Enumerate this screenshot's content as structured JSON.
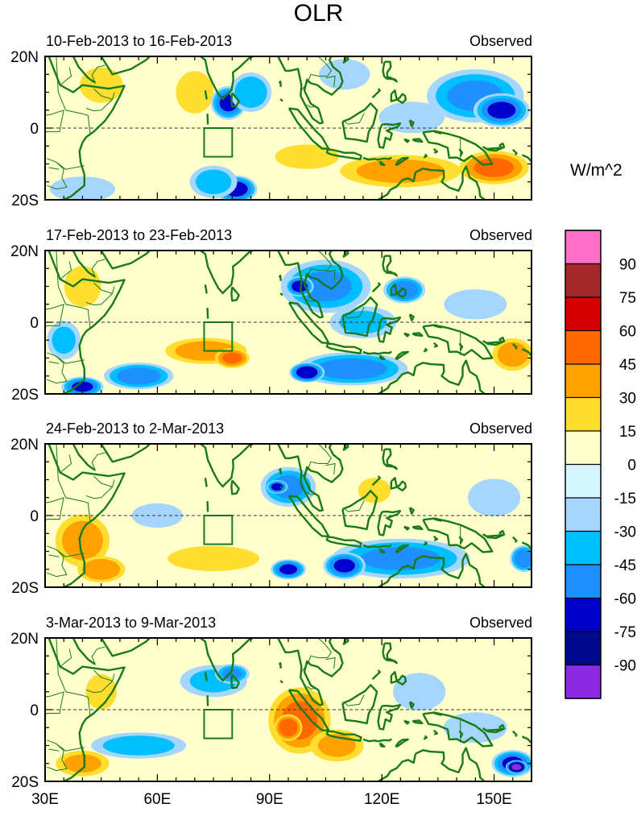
{
  "chart_data": {
    "type": "heatmap",
    "title": "OLR",
    "units": "W/m^2",
    "x_axis": {
      "ticks": [
        "30E",
        "60E",
        "90E",
        "120E",
        "150E"
      ],
      "range_deg": [
        30,
        160
      ]
    },
    "y_axis": {
      "ticks": [
        "20N",
        "0",
        "20S"
      ],
      "range_deg": [
        -20,
        20
      ]
    },
    "colorbar": {
      "labels": [
        "90",
        "75",
        "60",
        "45",
        "30",
        "15",
        "0",
        "-15",
        "-30",
        "-45",
        "-60",
        "-75",
        "-90"
      ],
      "colors": [
        "#ff6ec7",
        "#a5282a",
        "#d70000",
        "#ff6a00",
        "#ffa200",
        "#ffde30",
        "#ffffcc",
        "#d5f6ff",
        "#a5d6ff",
        "#00bfff",
        "#1e90ff",
        "#0000cd",
        "#000a8c",
        "#8b2be2"
      ]
    },
    "panels": [
      {
        "period": "10-Feb-2013 to 16-Feb-2013",
        "label": "Observed",
        "anomalies": [
          {
            "lon": 145,
            "lat": 9,
            "rx": 14,
            "ry": 8,
            "v": -45
          },
          {
            "lon": 152,
            "lat": 5,
            "rx": 8,
            "ry": 5,
            "v": -60
          },
          {
            "lon": 79,
            "lat": 7,
            "rx": 5,
            "ry": 5,
            "v": -60
          },
          {
            "lon": 85,
            "lat": 10,
            "rx": 6,
            "ry": 6,
            "v": -40
          },
          {
            "lon": 81,
            "lat": -17,
            "rx": 6,
            "ry": 4,
            "v": -65
          },
          {
            "lon": 75,
            "lat": -15,
            "rx": 7,
            "ry": 5,
            "v": -35
          },
          {
            "lon": 128,
            "lat": 3,
            "rx": 10,
            "ry": 5,
            "v": -25
          },
          {
            "lon": 110,
            "lat": 15,
            "rx": 8,
            "ry": 5,
            "v": -20
          },
          {
            "lon": 70,
            "lat": 10,
            "rx": 6,
            "ry": 7,
            "v": 18
          },
          {
            "lon": 150,
            "lat": -11,
            "rx": 10,
            "ry": 5,
            "v": 45
          },
          {
            "lon": 125,
            "lat": -12,
            "rx": 18,
            "ry": 5,
            "v": 32
          },
          {
            "lon": 100,
            "lat": -8,
            "rx": 10,
            "ry": 4,
            "v": 20
          },
          {
            "lon": 45,
            "lat": 12,
            "rx": 7,
            "ry": 6,
            "v": 16
          },
          {
            "lon": 40,
            "lat": -17,
            "rx": 10,
            "ry": 4,
            "v": -25
          }
        ]
      },
      {
        "period": "17-Feb-2013 to 23-Feb-2013",
        "label": "Observed",
        "anomalies": [
          {
            "lon": 105,
            "lat": 10,
            "rx": 13,
            "ry": 8,
            "v": -45
          },
          {
            "lon": 98,
            "lat": 10,
            "rx": 4,
            "ry": 3,
            "v": -65
          },
          {
            "lon": 126,
            "lat": 9,
            "rx": 6,
            "ry": 4,
            "v": -55
          },
          {
            "lon": 115,
            "lat": 0,
            "rx": 10,
            "ry": 5,
            "v": -30
          },
          {
            "lon": 112,
            "lat": -13,
            "rx": 16,
            "ry": 5,
            "v": -50
          },
          {
            "lon": 100,
            "lat": -14,
            "rx": 5,
            "ry": 3,
            "v": -70
          },
          {
            "lon": 55,
            "lat": -15,
            "rx": 10,
            "ry": 4,
            "v": -50
          },
          {
            "lon": 40,
            "lat": -18,
            "rx": 6,
            "ry": 3,
            "v": -60
          },
          {
            "lon": 35,
            "lat": -5,
            "rx": 5,
            "ry": 6,
            "v": -30
          },
          {
            "lon": 73,
            "lat": -8,
            "rx": 12,
            "ry": 4,
            "v": 35
          },
          {
            "lon": 80,
            "lat": -10,
            "rx": 5,
            "ry": 3,
            "v": 45
          },
          {
            "lon": 155,
            "lat": -9,
            "rx": 6,
            "ry": 5,
            "v": 35
          },
          {
            "lon": 40,
            "lat": 10,
            "rx": 6,
            "ry": 7,
            "v": 15
          },
          {
            "lon": 145,
            "lat": 5,
            "rx": 10,
            "ry": 5,
            "v": -18
          }
        ]
      },
      {
        "period": "24-Feb-2013 to 2-Mar-2013",
        "label": "Observed",
        "anomalies": [
          {
            "lon": 95,
            "lat": 8,
            "rx": 8,
            "ry": 6,
            "v": -45
          },
          {
            "lon": 92,
            "lat": 8,
            "rx": 3,
            "ry": 2,
            "v": -65
          },
          {
            "lon": 125,
            "lat": -12,
            "rx": 20,
            "ry": 6,
            "v": -45
          },
          {
            "lon": 110,
            "lat": -14,
            "rx": 6,
            "ry": 4,
            "v": -60
          },
          {
            "lon": 158,
            "lat": -12,
            "rx": 4,
            "ry": 4,
            "v": -55
          },
          {
            "lon": 95,
            "lat": -15,
            "rx": 5,
            "ry": 3,
            "v": -60
          },
          {
            "lon": 118,
            "lat": 7,
            "rx": 5,
            "ry": 4,
            "v": 25
          },
          {
            "lon": 40,
            "lat": -7,
            "rx": 8,
            "ry": 8,
            "v": 35
          },
          {
            "lon": 45,
            "lat": -15,
            "rx": 7,
            "ry": 4,
            "v": 40
          },
          {
            "lon": 75,
            "lat": -12,
            "rx": 14,
            "ry": 4,
            "v": 25
          },
          {
            "lon": 150,
            "lat": 5,
            "rx": 8,
            "ry": 6,
            "v": -25
          },
          {
            "lon": 60,
            "lat": 0,
            "rx": 8,
            "ry": 4,
            "v": -20
          }
        ]
      },
      {
        "period": "3-Mar-2013 to 9-Mar-2013",
        "label": "Observed",
        "anomalies": [
          {
            "lon": 98,
            "lat": -3,
            "rx": 9,
            "ry": 10,
            "v": 45
          },
          {
            "lon": 95,
            "lat": -5,
            "rx": 4,
            "ry": 4,
            "v": 55
          },
          {
            "lon": 108,
            "lat": -10,
            "rx": 8,
            "ry": 5,
            "v": 30
          },
          {
            "lon": 155,
            "lat": -15,
            "rx": 6,
            "ry": 4,
            "v": -60
          },
          {
            "lon": 156,
            "lat": -16,
            "rx": 3,
            "ry": 2,
            "v": -95
          },
          {
            "lon": 55,
            "lat": -10,
            "rx": 14,
            "ry": 4,
            "v": -35
          },
          {
            "lon": 75,
            "lat": 8,
            "rx": 10,
            "ry": 5,
            "v": -30
          },
          {
            "lon": 80,
            "lat": 10,
            "rx": 5,
            "ry": 3,
            "v": -45
          },
          {
            "lon": 130,
            "lat": 5,
            "rx": 8,
            "ry": 6,
            "v": -25
          },
          {
            "lon": 145,
            "lat": -5,
            "rx": 10,
            "ry": 5,
            "v": -20
          },
          {
            "lon": 40,
            "lat": -15,
            "rx": 8,
            "ry": 4,
            "v": 30
          },
          {
            "lon": 45,
            "lat": 5,
            "rx": 5,
            "ry": 6,
            "v": 16
          }
        ]
      }
    ]
  }
}
